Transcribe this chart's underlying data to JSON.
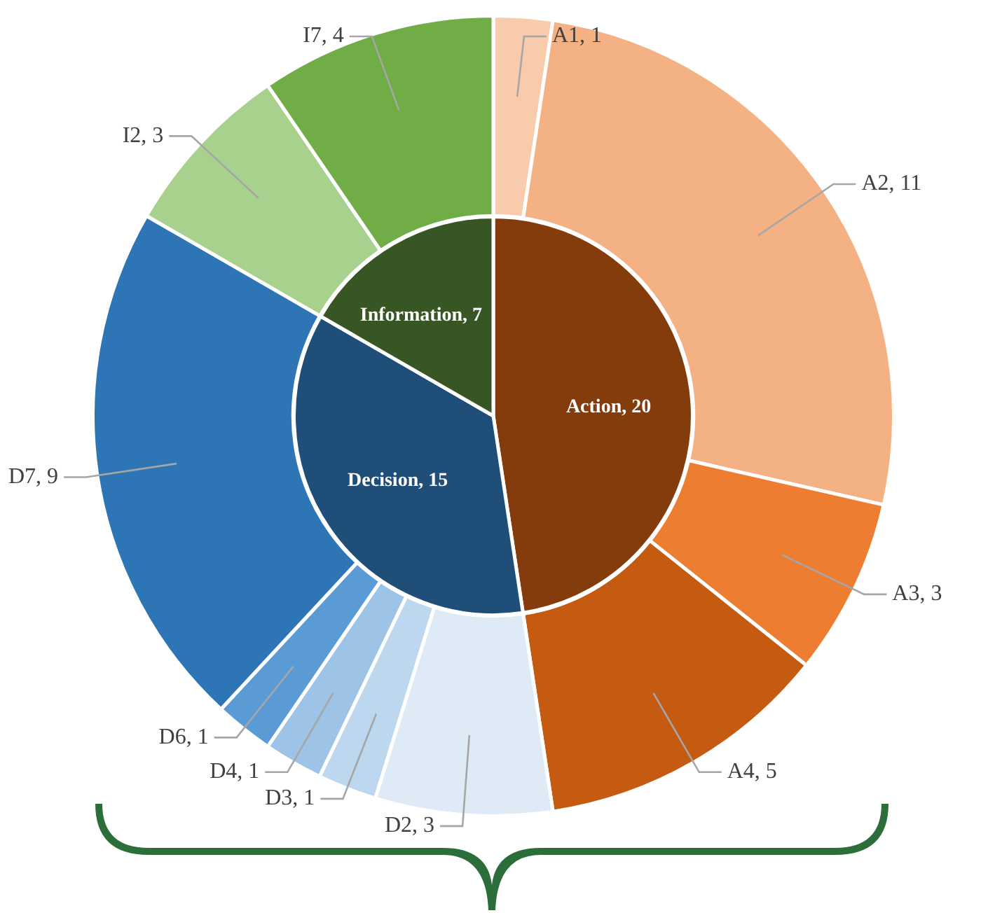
{
  "chart_data": [
    {
      "type": "donut",
      "legend": false,
      "categories": [
        "A1, 1",
        "A2, 11",
        "A3, 3",
        "A4, 5",
        "D2, 3",
        "D3, 1",
        "D4, 1",
        "D6, 1",
        "D7, 9",
        "I2, 3",
        "I7, 4"
      ],
      "values": [
        1,
        11,
        3,
        5,
        3,
        1,
        1,
        1,
        9,
        3,
        4
      ],
      "colors": [
        "#f8cbad",
        "#f4b183",
        "#ed7d31",
        "#c55a11",
        "#deebf7",
        "#bdd7ee",
        "#9dc3e6",
        "#5b9bd5",
        "#2e75b6",
        "#a9d18e",
        "#70ad47"
      ]
    },
    {
      "type": "pie",
      "legend": false,
      "categories": [
        "Action, 20",
        "Decision, 15",
        "Information, 7"
      ],
      "values": [
        20,
        15,
        7
      ],
      "colors": [
        "#843c0c",
        "#1f4e79",
        "#375623"
      ]
    }
  ]
}
